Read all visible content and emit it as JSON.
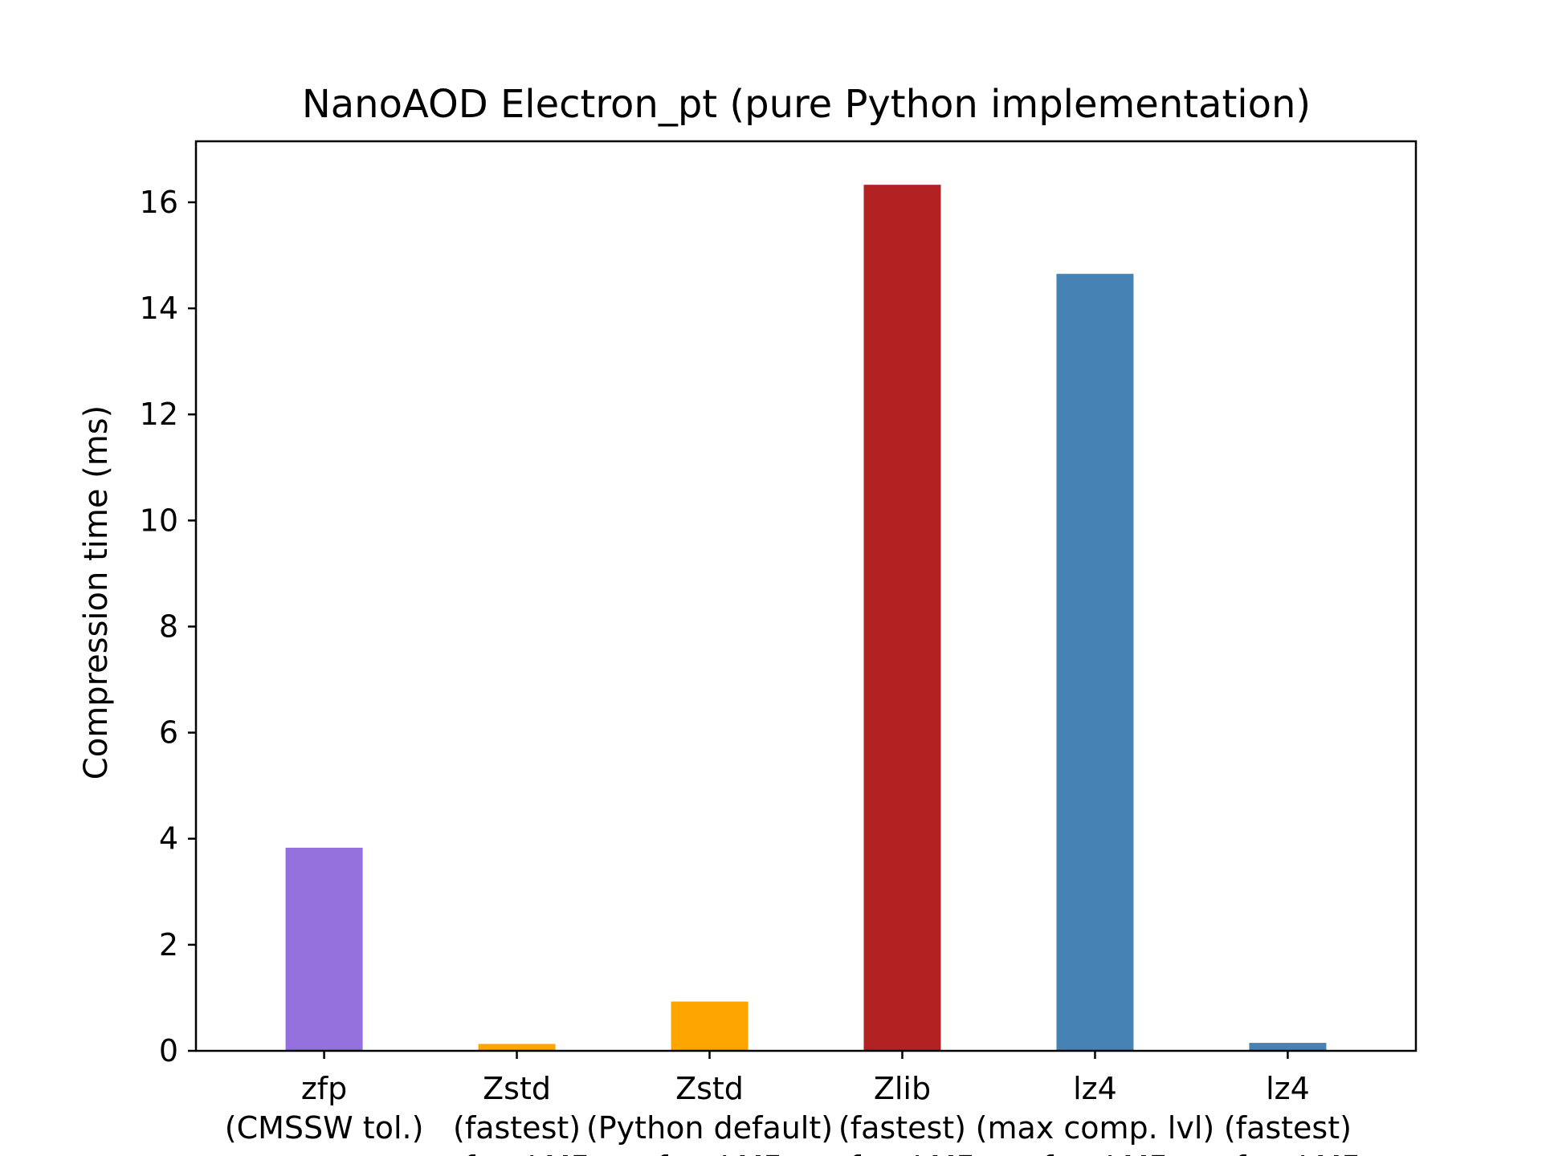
{
  "chart_data": {
    "type": "bar",
    "title": "NanoAOD Electron_pt (pure Python implementation)",
    "xlabel": "",
    "ylabel": "Compression time (ms)",
    "ylim": [
      0,
      17.15
    ],
    "yticks": [
      0,
      2,
      4,
      6,
      8,
      10,
      12,
      14,
      16
    ],
    "categories": [
      [
        "zfp",
        "(CMSSW tol.)"
      ],
      [
        "Zstd",
        "(fastest)",
        "after LMF"
      ],
      [
        "Zstd",
        "(Python default)",
        "after LMF"
      ],
      [
        "Zlib",
        "(fastest)",
        "after LMF"
      ],
      [
        "lz4",
        "(max comp. lvl)",
        "after LMF"
      ],
      [
        "lz4",
        "(fastest)",
        "after LMF"
      ]
    ],
    "values": [
      3.83,
      0.13,
      0.93,
      16.33,
      14.65,
      0.15
    ],
    "colors": [
      "#9370db",
      "#ffa500",
      "#ffa500",
      "#b22222",
      "#4682b4",
      "#4682b4"
    ],
    "grid": false,
    "legend": "none"
  }
}
